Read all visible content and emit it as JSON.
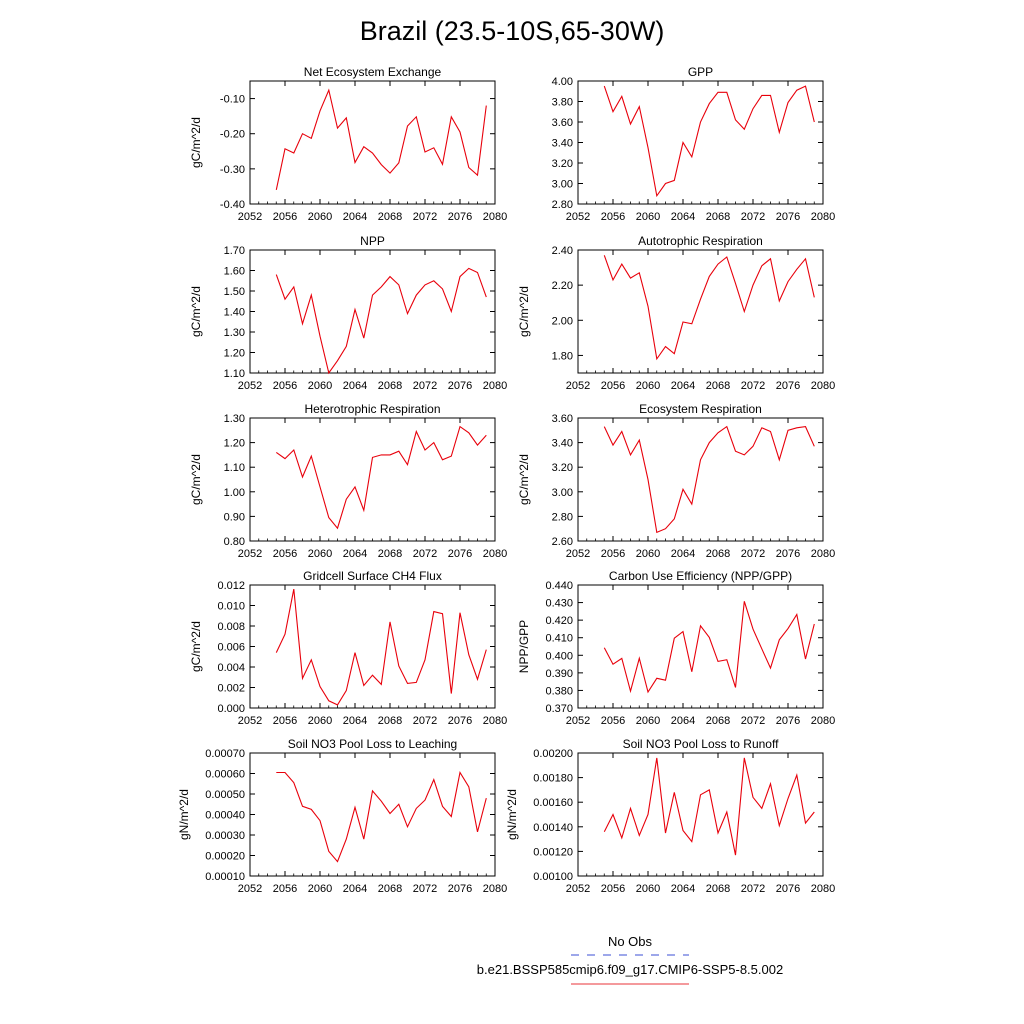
{
  "page": {
    "title": "Brazil (23.5-10S,65-30W)",
    "legend": [
      {
        "label": "No Obs",
        "color": "#3b4fd4",
        "style": "dashed"
      },
      {
        "label": "b.e21.BSSP585cmip6.f09_g17.CMIP6-SSP5-8.5.002",
        "color": "#e8333a",
        "style": "solid"
      }
    ]
  },
  "chart_data": [
    {
      "type": "line",
      "title": "Net Ecosystem Exchange",
      "ylabel": "gC/m^2/d",
      "xlim": [
        2052,
        2080
      ],
      "xticks": [
        "2052",
        "2056",
        "2060",
        "2064",
        "2068",
        "2072",
        "2076",
        "2080"
      ],
      "ylim": [
        -0.4,
        -0.05
      ],
      "yticks": [
        "-0.40",
        "-0.30",
        "-0.20",
        "-0.10"
      ],
      "series_color": "#e8000b",
      "x": [
        2055,
        2056,
        2057,
        2058,
        2059,
        2060,
        2061,
        2062,
        2063,
        2064,
        2065,
        2066,
        2067,
        2068,
        2069,
        2070,
        2071,
        2072,
        2073,
        2074,
        2075,
        2076,
        2077,
        2078,
        2079
      ],
      "values": [
        -0.36,
        -0.243,
        -0.255,
        -0.2,
        -0.213,
        -0.135,
        -0.076,
        -0.184,
        -0.155,
        -0.282,
        -0.237,
        -0.255,
        -0.288,
        -0.312,
        -0.283,
        -0.178,
        -0.152,
        -0.252,
        -0.24,
        -0.287,
        -0.152,
        -0.195,
        -0.296,
        -0.318,
        -0.12
      ]
    },
    {
      "type": "line",
      "title": "GPP",
      "ylabel": "",
      "xlim": [
        2052,
        2080
      ],
      "xticks": [
        "2052",
        "2056",
        "2060",
        "2064",
        "2068",
        "2072",
        "2076",
        "2080"
      ],
      "ylim": [
        2.8,
        4.0
      ],
      "yticks": [
        "2.80",
        "3.00",
        "3.20",
        "3.40",
        "3.60",
        "3.80",
        "4.00"
      ],
      "series_color": "#e8000b",
      "x": [
        2055,
        2056,
        2057,
        2058,
        2059,
        2060,
        2061,
        2062,
        2063,
        2064,
        2065,
        2066,
        2067,
        2068,
        2069,
        2070,
        2071,
        2072,
        2073,
        2074,
        2075,
        2076,
        2077,
        2078,
        2079
      ],
      "values": [
        3.95,
        3.7,
        3.85,
        3.58,
        3.75,
        3.35,
        2.88,
        3.0,
        3.03,
        3.4,
        3.26,
        3.6,
        3.78,
        3.89,
        3.89,
        3.62,
        3.53,
        3.73,
        3.86,
        3.86,
        3.5,
        3.79,
        3.91,
        3.95,
        3.6
      ]
    },
    {
      "type": "line",
      "title": "NPP",
      "ylabel": "gC/m^2/d",
      "xlim": [
        2052,
        2080
      ],
      "xticks": [
        "2052",
        "2056",
        "2060",
        "2064",
        "2068",
        "2072",
        "2076",
        "2080"
      ],
      "ylim": [
        1.1,
        1.7
      ],
      "yticks": [
        "1.10",
        "1.20",
        "1.30",
        "1.40",
        "1.50",
        "1.60",
        "1.70"
      ],
      "series_color": "#e8000b",
      "x": [
        2055,
        2056,
        2057,
        2058,
        2059,
        2060,
        2061,
        2062,
        2063,
        2064,
        2065,
        2066,
        2067,
        2068,
        2069,
        2070,
        2071,
        2072,
        2073,
        2074,
        2075,
        2076,
        2077,
        2078,
        2079
      ],
      "values": [
        1.58,
        1.46,
        1.52,
        1.34,
        1.48,
        1.28,
        1.1,
        1.16,
        1.23,
        1.41,
        1.27,
        1.48,
        1.52,
        1.57,
        1.53,
        1.39,
        1.48,
        1.53,
        1.55,
        1.51,
        1.4,
        1.57,
        1.61,
        1.59,
        1.47
      ]
    },
    {
      "type": "line",
      "title": "Autotrophic Respiration",
      "ylabel": "gC/m^2/d",
      "xlim": [
        2052,
        2080
      ],
      "xticks": [
        "2052",
        "2056",
        "2060",
        "2064",
        "2068",
        "2072",
        "2076",
        "2080"
      ],
      "ylim": [
        1.7,
        2.4
      ],
      "yticks": [
        "1.80",
        "2.00",
        "2.20",
        "2.40"
      ],
      "series_color": "#e8000b",
      "x": [
        2055,
        2056,
        2057,
        2058,
        2059,
        2060,
        2061,
        2062,
        2063,
        2064,
        2065,
        2066,
        2067,
        2068,
        2069,
        2070,
        2071,
        2072,
        2073,
        2074,
        2075,
        2076,
        2077,
        2078,
        2079
      ],
      "values": [
        2.37,
        2.23,
        2.32,
        2.24,
        2.27,
        2.08,
        1.78,
        1.85,
        1.81,
        1.99,
        1.98,
        2.12,
        2.25,
        2.32,
        2.36,
        2.21,
        2.05,
        2.2,
        2.31,
        2.35,
        2.11,
        2.22,
        2.29,
        2.35,
        2.13
      ]
    },
    {
      "type": "line",
      "title": "Heterotrophic Respiration",
      "ylabel": "gC/m^2/d",
      "xlim": [
        2052,
        2080
      ],
      "xticks": [
        "2052",
        "2056",
        "2060",
        "2064",
        "2068",
        "2072",
        "2076",
        "2080"
      ],
      "ylim": [
        0.8,
        1.3
      ],
      "yticks": [
        "0.80",
        "0.90",
        "1.00",
        "1.10",
        "1.20",
        "1.30"
      ],
      "series_color": "#e8000b",
      "x": [
        2055,
        2056,
        2057,
        2058,
        2059,
        2060,
        2061,
        2062,
        2063,
        2064,
        2065,
        2066,
        2067,
        2068,
        2069,
        2070,
        2071,
        2072,
        2073,
        2074,
        2075,
        2076,
        2077,
        2078,
        2079
      ],
      "values": [
        1.16,
        1.135,
        1.17,
        1.06,
        1.145,
        1.02,
        0.895,
        0.852,
        0.97,
        1.02,
        0.925,
        1.14,
        1.15,
        1.15,
        1.165,
        1.11,
        1.245,
        1.17,
        1.2,
        1.13,
        1.145,
        1.265,
        1.24,
        1.19,
        1.23
      ]
    },
    {
      "type": "line",
      "title": "Ecosystem Respiration",
      "ylabel": "gC/m^2/d",
      "xlim": [
        2052,
        2080
      ],
      "xticks": [
        "2052",
        "2056",
        "2060",
        "2064",
        "2068",
        "2072",
        "2076",
        "2080"
      ],
      "ylim": [
        2.6,
        3.6
      ],
      "yticks": [
        "2.60",
        "2.80",
        "3.00",
        "3.20",
        "3.40",
        "3.60"
      ],
      "series_color": "#e8000b",
      "x": [
        2055,
        2056,
        2057,
        2058,
        2059,
        2060,
        2061,
        2062,
        2063,
        2064,
        2065,
        2066,
        2067,
        2068,
        2069,
        2070,
        2071,
        2072,
        2073,
        2074,
        2075,
        2076,
        2077,
        2078,
        2079
      ],
      "values": [
        3.53,
        3.38,
        3.49,
        3.3,
        3.42,
        3.1,
        2.67,
        2.7,
        2.78,
        3.02,
        2.9,
        3.26,
        3.4,
        3.48,
        3.53,
        3.33,
        3.3,
        3.37,
        3.52,
        3.49,
        3.26,
        3.5,
        3.52,
        3.53,
        3.37
      ]
    },
    {
      "type": "line",
      "title": "Gridcell Surface CH4 Flux",
      "ylabel": "gC/m^2/d",
      "xlim": [
        2052,
        2080
      ],
      "xticks": [
        "2052",
        "2056",
        "2060",
        "2064",
        "2068",
        "2072",
        "2076",
        "2080"
      ],
      "ylim": [
        0.0,
        0.012
      ],
      "yticks": [
        "0.000",
        "0.002",
        "0.004",
        "0.006",
        "0.008",
        "0.010",
        "0.012"
      ],
      "series_color": "#e8000b",
      "x": [
        2055,
        2056,
        2057,
        2058,
        2059,
        2060,
        2061,
        2062,
        2063,
        2064,
        2065,
        2066,
        2067,
        2068,
        2069,
        2070,
        2071,
        2072,
        2073,
        2074,
        2075,
        2076,
        2077,
        2078,
        2079
      ],
      "values": [
        0.0054,
        0.0072,
        0.0116,
        0.0029,
        0.0047,
        0.0021,
        0.0007,
        0.0003,
        0.0017,
        0.0054,
        0.0022,
        0.0032,
        0.0023,
        0.0084,
        0.0041,
        0.0024,
        0.0025,
        0.0047,
        0.0094,
        0.0092,
        0.0014,
        0.0093,
        0.0052,
        0.0028,
        0.0057
      ]
    },
    {
      "type": "line",
      "title": "Carbon Use Efficiency (NPP/GPP)",
      "ylabel": "NPP/GPP",
      "xlim": [
        2052,
        2080
      ],
      "xticks": [
        "2052",
        "2056",
        "2060",
        "2064",
        "2068",
        "2072",
        "2076",
        "2080"
      ],
      "ylim": [
        0.37,
        0.44
      ],
      "yticks": [
        "0.370",
        "0.380",
        "0.390",
        "0.400",
        "0.410",
        "0.420",
        "0.430",
        "0.440"
      ],
      "series_color": "#e8000b",
      "x": [
        2055,
        2056,
        2057,
        2058,
        2059,
        2060,
        2061,
        2062,
        2063,
        2064,
        2065,
        2066,
        2067,
        2068,
        2069,
        2070,
        2071,
        2072,
        2073,
        2074,
        2075,
        2076,
        2077,
        2078,
        2079
      ],
      "values": [
        0.4043,
        0.3949,
        0.3982,
        0.3796,
        0.3983,
        0.3791,
        0.3869,
        0.3858,
        0.4097,
        0.4135,
        0.3906,
        0.4168,
        0.4102,
        0.3965,
        0.3975,
        0.3817,
        0.4307,
        0.4149,
        0.4037,
        0.3927,
        0.4088,
        0.4152,
        0.4232,
        0.3979,
        0.4178
      ]
    },
    {
      "type": "line",
      "title": "Soil NO3 Pool Loss to Leaching",
      "ylabel": "gN/m^2/d",
      "xlim": [
        2052,
        2080
      ],
      "xticks": [
        "2052",
        "2056",
        "2060",
        "2064",
        "2068",
        "2072",
        "2076",
        "2080"
      ],
      "ylim": [
        0.0001,
        0.0007
      ],
      "yticks": [
        "0.00010",
        "0.00020",
        "0.00030",
        "0.00040",
        "0.00050",
        "0.00060",
        "0.00070"
      ],
      "series_color": "#e8000b",
      "x": [
        2055,
        2056,
        2057,
        2058,
        2059,
        2060,
        2061,
        2062,
        2063,
        2064,
        2065,
        2066,
        2067,
        2068,
        2069,
        2070,
        2071,
        2072,
        2073,
        2074,
        2075,
        2076,
        2077,
        2078,
        2079
      ],
      "values": [
        0.000605,
        0.000605,
        0.000555,
        0.00044,
        0.000425,
        0.00037,
        0.00022,
        0.00017,
        0.00028,
        0.000435,
        0.00028,
        0.000515,
        0.000465,
        0.000405,
        0.00045,
        0.00034,
        0.00043,
        0.00047,
        0.00057,
        0.00044,
        0.00039,
        0.000605,
        0.000535,
        0.000315,
        0.00048
      ]
    },
    {
      "type": "line",
      "title": "Soil NO3 Pool Loss to Runoff",
      "ylabel": "gN/m^2/d",
      "xlim": [
        2052,
        2080
      ],
      "xticks": [
        "2052",
        "2056",
        "2060",
        "2064",
        "2068",
        "2072",
        "2076",
        "2080"
      ],
      "ylim": [
        0.001,
        0.002
      ],
      "yticks": [
        "0.00100",
        "0.00120",
        "0.00140",
        "0.00160",
        "0.00180",
        "0.00200"
      ],
      "series_color": "#e8000b",
      "x": [
        2055,
        2056,
        2057,
        2058,
        2059,
        2060,
        2061,
        2062,
        2063,
        2064,
        2065,
        2066,
        2067,
        2068,
        2069,
        2070,
        2071,
        2072,
        2073,
        2074,
        2075,
        2076,
        2077,
        2078,
        2079
      ],
      "values": [
        0.00136,
        0.0015,
        0.00131,
        0.00155,
        0.00133,
        0.0015,
        0.00196,
        0.00135,
        0.00168,
        0.00137,
        0.00128,
        0.00166,
        0.0017,
        0.00135,
        0.00152,
        0.00117,
        0.00196,
        0.00164,
        0.00155,
        0.00175,
        0.00141,
        0.00163,
        0.00182,
        0.00143,
        0.00152
      ]
    }
  ]
}
